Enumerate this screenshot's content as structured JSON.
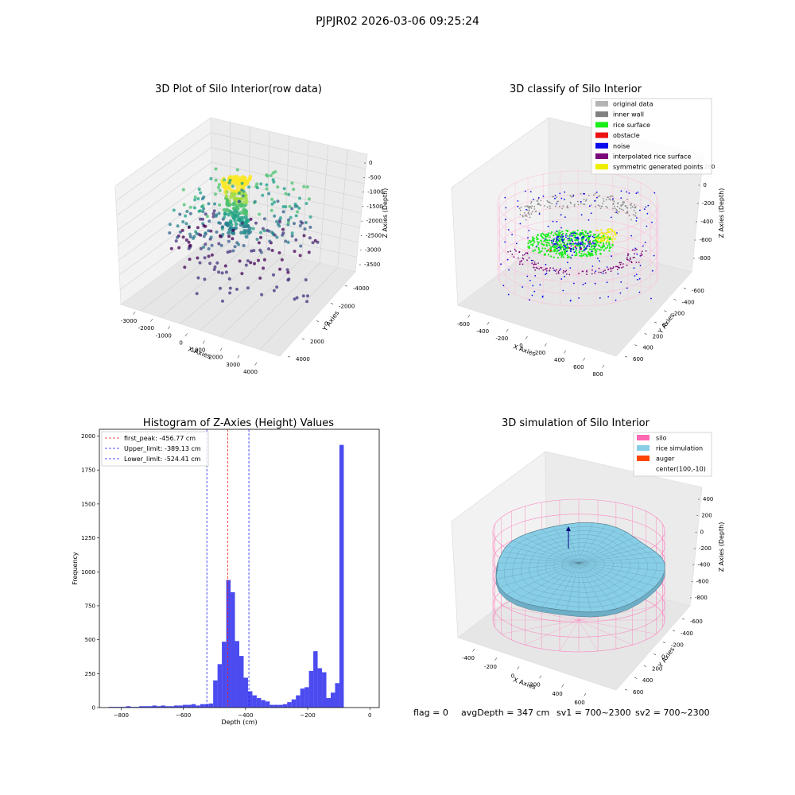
{
  "suptitle": "PJPJR02 2026-03-06 09:25:24",
  "footer": {
    "flag": "flag = 0",
    "avg": "avgDepth = 347 cm",
    "sv1": "sv1 = 700~2300",
    "sv2": "sv2 = 700~2300"
  },
  "chart_data": [
    {
      "type": "scatter",
      "title": "3D Plot of Silo Interior(row data)",
      "xlabel": "X Axies",
      "ylabel": "Y Axies",
      "zlabel": "Z Axies (Depth)",
      "x_ticks": [
        "-3000",
        "-2000",
        "-1000",
        "0",
        "1000",
        "2000",
        "3000",
        "4000"
      ],
      "y_ticks": [
        "-4000",
        "-2000",
        "0",
        "2000",
        "4000"
      ],
      "z_ticks": [
        "0",
        "-500",
        "-1000",
        "-1500",
        "-2000",
        "-2500",
        "-3000",
        "-3500"
      ],
      "colormap": "viridis (by depth)"
    },
    {
      "type": "scatter",
      "title": "3D classify of Silo Interior",
      "xlabel": "X Axies",
      "ylabel": "Y Axies",
      "zlabel": "Z Axies (Depth)",
      "x_ticks": [
        "-600",
        "-400",
        "-200",
        "0",
        "200",
        "400",
        "600",
        "800"
      ],
      "y_ticks": [
        "-600",
        "-400",
        "-200",
        "0",
        "200",
        "400",
        "600"
      ],
      "z_ticks": [
        "200",
        "0",
        "-200",
        "-400",
        "-600",
        "-800"
      ],
      "legend": [
        {
          "label": "original data",
          "color": "#b4b4b4"
        },
        {
          "label": "inner wall",
          "color": "#808080"
        },
        {
          "label": "rice surface",
          "color": "#1aee1a"
        },
        {
          "label": "obstacle",
          "color": "#ee1111"
        },
        {
          "label": "noise",
          "color": "#0a0aee"
        },
        {
          "label": "interpolated rice surface",
          "color": "#7a0a7a"
        },
        {
          "label": "symmetric generated points",
          "color": "#eeee00"
        }
      ],
      "legend_position": "upper right"
    },
    {
      "type": "bar",
      "title": "Histogram of Z-Axies (Height) Values",
      "xlabel": "Depth (cm)",
      "ylabel": "Frequency",
      "xlim": [
        -870,
        30
      ],
      "ylim": [
        0,
        2050
      ],
      "x_ticks": [
        -800,
        -600,
        -400,
        -200,
        0
      ],
      "y_ticks": [
        0,
        250,
        500,
        750,
        1000,
        1250,
        1500,
        1750,
        2000
      ],
      "bar_color": "#4b4bf0",
      "bin_width": 14,
      "bin_starts": [
        -840,
        -826,
        -812,
        -798,
        -784,
        -770,
        -756,
        -742,
        -728,
        -714,
        -700,
        -686,
        -672,
        -658,
        -644,
        -630,
        -616,
        -602,
        -588,
        -574,
        -560,
        -546,
        -532,
        -518,
        -504,
        -490,
        -476,
        -462,
        -448,
        -434,
        -420,
        -406,
        -392,
        -378,
        -364,
        -350,
        -336,
        -322,
        -308,
        -294,
        -280,
        -266,
        -252,
        -238,
        -224,
        -210,
        -196,
        -182,
        -168,
        -154,
        -140,
        -126,
        -112,
        -98,
        -84,
        -70,
        -56,
        -42,
        -28,
        -14
      ],
      "values": [
        5,
        5,
        5,
        5,
        10,
        5,
        5,
        10,
        10,
        10,
        15,
        10,
        15,
        10,
        10,
        15,
        15,
        20,
        20,
        25,
        15,
        25,
        25,
        30,
        200,
        320,
        485,
        940,
        850,
        490,
        380,
        220,
        120,
        90,
        70,
        55,
        45,
        20,
        20,
        20,
        25,
        40,
        60,
        90,
        140,
        150,
        270,
        415,
        290,
        260,
        70,
        110,
        180,
        1935,
        0,
        0,
        0,
        0,
        0,
        0
      ],
      "lines": [
        {
          "label": "first_peak: -456.77 cm",
          "x": -456.77,
          "color": "#ee2020"
        },
        {
          "label": "Upper_limit: -389.13 cm",
          "x": -389.13,
          "color": "#2020ee"
        },
        {
          "label": "Lower_limit: -524.41 cm",
          "x": -524.41,
          "color": "#2020ee"
        }
      ],
      "legend_position": "upper left",
      "grid": false
    },
    {
      "type": "surface",
      "title": "3D simulation of Silo Interior",
      "xlabel": "X Axies",
      "ylabel": "Y Axies",
      "zlabel": "Z Axies (Depth)",
      "x_ticks": [
        "-400",
        "-200",
        "0",
        "200",
        "400",
        "600"
      ],
      "y_ticks": [
        "-600",
        "-400",
        "-200",
        "0",
        "200",
        "400",
        "600"
      ],
      "z_ticks": [
        "400",
        "200",
        "0",
        "-200",
        "-400",
        "-600",
        "-800"
      ],
      "legend": [
        {
          "label": "silo",
          "color": "#ff69b4"
        },
        {
          "label": "rice simulation",
          "color": "#87cee6"
        },
        {
          "label": "auger",
          "color": "#ff4500"
        },
        {
          "label": "center(100,-10)",
          "color": ""
        }
      ],
      "legend_position": "upper right"
    }
  ]
}
